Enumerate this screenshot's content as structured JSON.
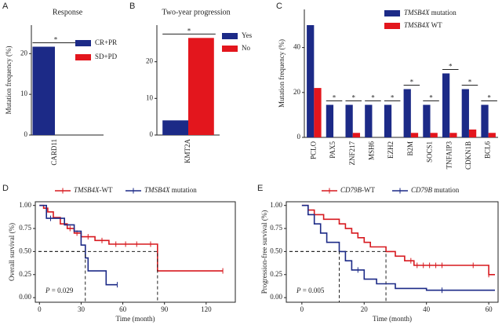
{
  "chart_data": [
    {
      "type": "bar",
      "panel_label": "A",
      "title": "Response",
      "ylabel": "Mutation frequency (%)",
      "categories": [
        "CARD11"
      ],
      "series": [
        {
          "name": "CR+PR",
          "color": "#1c2a87",
          "values": [
            21.7
          ]
        },
        {
          "name": "SD+PD",
          "color": "#e3161d",
          "values": [
            0
          ]
        }
      ],
      "significance": [
        "*"
      ],
      "ylim": [
        0,
        27
      ],
      "yticks": [
        0,
        10,
        20
      ]
    },
    {
      "type": "bar",
      "panel_label": "B",
      "title": "Two-year progression",
      "categories": [
        "KMT2A"
      ],
      "series": [
        {
          "name": "Yes",
          "color": "#1c2a87",
          "values": [
            4
          ]
        },
        {
          "name": "No",
          "color": "#e3161d",
          "values": [
            26.5
          ]
        }
      ],
      "significance": [
        "*"
      ],
      "ylim": [
        0,
        30
      ],
      "yticks": [
        0,
        10,
        20
      ]
    },
    {
      "type": "bar",
      "panel_label": "C",
      "ylabel": "Mutation frequency (%)",
      "italic_names": true,
      "categories": [
        "PCLO",
        "PAX5",
        "ZNF217",
        "MSH6",
        "EZH2",
        "B2M",
        "SOCS1",
        "TNFAIP3",
        "CDKN1B",
        "BCL6"
      ],
      "series": [
        {
          "name": "TMSB4X mutation",
          "color": "#1c2a87",
          "values": [
            50,
            14.5,
            14.5,
            14.5,
            14.5,
            21.5,
            14.5,
            28.5,
            21.5,
            14.5
          ]
        },
        {
          "name": "TMSB4X WT",
          "color": "#e3161d",
          "values": [
            22,
            0,
            2,
            0,
            0,
            2,
            2,
            2,
            3.5,
            2
          ]
        }
      ],
      "significance": [
        null,
        "*",
        "*",
        "*",
        "*",
        "*",
        "*",
        "*",
        "*",
        "*"
      ],
      "ylim": [
        0,
        57
      ],
      "yticks": [
        0,
        20,
        40
      ]
    },
    {
      "type": "line",
      "panel_label": "D",
      "ylabel": "Overall survival (%)",
      "xlabel": "Time (month)",
      "italic_names": true,
      "p_text": "P = 0.029",
      "median_level": 0.5,
      "series": [
        {
          "name": "TMSB4X-WT",
          "color": "#d7191f",
          "x": [
            0,
            3,
            3,
            6,
            6,
            10,
            10,
            15,
            15,
            20,
            20,
            25,
            25,
            30,
            30,
            40,
            40,
            50,
            50,
            85,
            85,
            132
          ],
          "values": [
            1,
            1,
            0.97,
            0.97,
            0.93,
            0.93,
            0.87,
            0.87,
            0.8,
            0.8,
            0.75,
            0.75,
            0.7,
            0.7,
            0.66,
            0.66,
            0.62,
            0.62,
            0.58,
            0.58,
            0.29,
            0.29
          ],
          "censored": [
            22,
            27,
            35,
            45,
            55,
            62,
            70,
            80,
            132
          ],
          "median": 85
        },
        {
          "name": "TMSB4X mutation",
          "color": "#1c2a87",
          "x": [
            0,
            5,
            5,
            18,
            18,
            25,
            25,
            30,
            30,
            33,
            33,
            35,
            35,
            48,
            48,
            56
          ],
          "values": [
            1,
            1,
            0.86,
            0.86,
            0.79,
            0.79,
            0.72,
            0.72,
            0.57,
            0.57,
            0.43,
            0.43,
            0.29,
            0.29,
            0.14,
            0.14
          ],
          "censored": [
            8,
            56
          ],
          "median": 33
        }
      ],
      "xlim": [
        -3,
        141
      ],
      "xticks": [
        0,
        30,
        60,
        90,
        120
      ],
      "ylim": [
        -0.05,
        1.04
      ],
      "yticks": [
        {
          "value": 0,
          "label": "0.00"
        },
        0.25,
        {
          "value": 0.5,
          "label": "0.50"
        },
        0.75,
        {
          "value": 1,
          "label": "1.00"
        }
      ]
    },
    {
      "type": "line",
      "panel_label": "E",
      "ylabel": "Progression-free survival (%)",
      "xlabel": "Time (month)",
      "italic_names": true,
      "p_text": "P = 0.005",
      "median_level": 0.5,
      "series": [
        {
          "name": "CD79B-WT",
          "color": "#d7191f",
          "x": [
            0,
            2,
            2,
            4,
            4,
            7,
            7,
            12,
            12,
            14,
            14,
            16,
            16,
            18,
            18,
            20,
            20,
            22,
            22,
            27,
            27,
            30,
            30,
            33,
            33,
            36,
            36,
            60,
            60,
            62
          ],
          "values": [
            1,
            1,
            0.95,
            0.95,
            0.9,
            0.9,
            0.85,
            0.85,
            0.8,
            0.8,
            0.75,
            0.75,
            0.7,
            0.7,
            0.65,
            0.65,
            0.6,
            0.6,
            0.55,
            0.55,
            0.5,
            0.5,
            0.45,
            0.45,
            0.4,
            0.4,
            0.35,
            0.35,
            0.25,
            0.25
          ],
          "censored": [
            35,
            37,
            39,
            41,
            43,
            45,
            55,
            60
          ],
          "median": 27
        },
        {
          "name": "CD79B mutation",
          "color": "#1c2a87",
          "x": [
            0,
            2,
            2,
            4,
            4,
            6,
            6,
            8,
            8,
            12,
            12,
            14,
            14,
            16,
            16,
            20,
            20,
            24,
            24,
            30,
            30,
            40,
            40,
            62
          ],
          "values": [
            1,
            1,
            0.9,
            0.9,
            0.8,
            0.8,
            0.7,
            0.7,
            0.6,
            0.6,
            0.5,
            0.5,
            0.4,
            0.4,
            0.3,
            0.3,
            0.2,
            0.2,
            0.15,
            0.15,
            0.1,
            0.1,
            0.08,
            0.08
          ],
          "censored": [
            18,
            45
          ],
          "median": 12
        }
      ],
      "xlim": [
        -5,
        63
      ],
      "xticks": [
        0,
        20,
        40,
        60
      ],
      "ylim": [
        -0.05,
        1.04
      ],
      "yticks": [
        {
          "value": 0,
          "label": "0.00"
        },
        0.25,
        {
          "value": 0.5,
          "label": "0.50"
        },
        0.75,
        {
          "value": 1,
          "label": "1.00"
        }
      ]
    }
  ]
}
